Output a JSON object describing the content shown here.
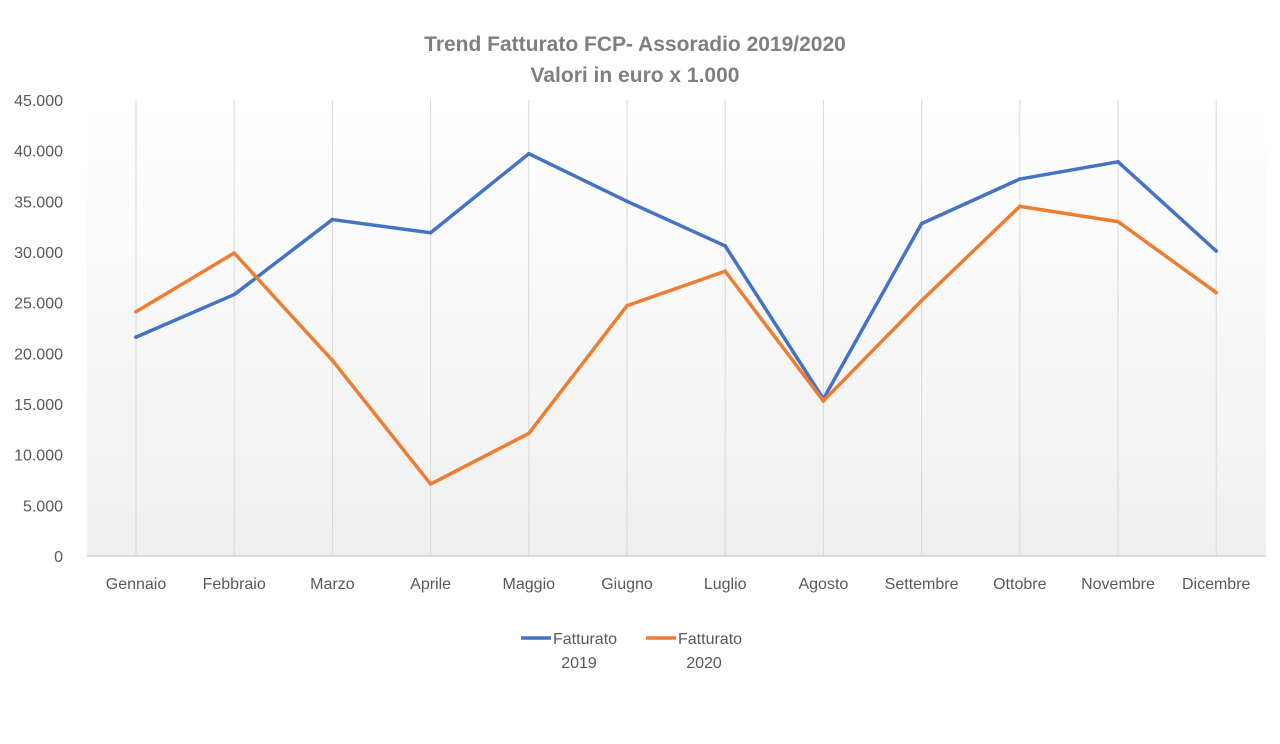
{
  "chart_data": {
    "type": "line",
    "title": "Trend Fatturato FCP- Assoradio 2019/2020",
    "subtitle": "Valori in euro x 1.000",
    "xlabel": "",
    "ylabel": "",
    "categories": [
      "Gennaio",
      "Febbraio",
      "Marzo",
      "Aprile",
      "Maggio",
      "Giugno",
      "Luglio",
      "Agosto",
      "Settembre",
      "Ottobre",
      "Novembre",
      "Dicembre"
    ],
    "ylim": [
      0,
      45000
    ],
    "y_ticks": [
      {
        "value": 0,
        "label": "0"
      },
      {
        "value": 5000,
        "label": "5.000"
      },
      {
        "value": 10000,
        "label": "10.000"
      },
      {
        "value": 15000,
        "label": "15.000"
      },
      {
        "value": 20000,
        "label": "20.000"
      },
      {
        "value": 25000,
        "label": "25.000"
      },
      {
        "value": 30000,
        "label": "30.000"
      },
      {
        "value": 35000,
        "label": "35.000"
      },
      {
        "value": 40000,
        "label": "40.000"
      },
      {
        "value": 45000,
        "label": "45.000"
      }
    ],
    "grid": "vertical",
    "legend": "bottom",
    "series": [
      {
        "name_line1": "Fatturato",
        "name_line2": "2019",
        "color": "#4472c4",
        "values": [
          21600,
          25800,
          33200,
          31900,
          39700,
          35000,
          30600,
          15500,
          32800,
          37200,
          38900,
          30100
        ]
      },
      {
        "name_line1": "Fatturato",
        "name_line2": "2020",
        "color": "#ed7d31",
        "values": [
          24100,
          29900,
          19300,
          7100,
          12100,
          24700,
          28100,
          15300,
          25200,
          34500,
          33000,
          26000
        ]
      }
    ]
  }
}
